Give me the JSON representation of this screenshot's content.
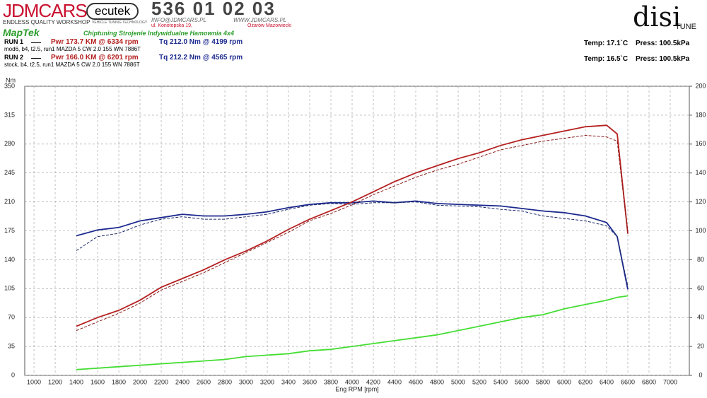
{
  "header": {
    "brand": "JDMCARS",
    "brand_tagline": "ENDLESS QUALITY WORKSHOP",
    "ecutek": "ecutek",
    "ecutek_tagline": "VEHICLE TUNING TECHNOLOGY",
    "phone": "536 01 02 03",
    "email": "INFO@JDMCARS.PL",
    "web": "WWW.JDMCARS.PL",
    "street": "ul. Konotopska 19,",
    "city": "Ożarów Mazowiecki",
    "maptek": "MapTek",
    "services": "Chiptuning Strojenie Indywidualne Hamownia 4x4",
    "disi": "disi",
    "tune": "TUNE"
  },
  "runs": [
    {
      "label": "RUN 1",
      "pwr": "Pwr  173.7 KM @ 6334 rpm",
      "tq": "Tq 212.0 Nm @ 4199 rpm",
      "desc": "mod6, b4, t2.5, run1 MAZDA 5 CW 2.0 155 WN 7886T",
      "temp": "Temp: 17.1`C",
      "press": "Press: 100.5kPa"
    },
    {
      "label": "RUN 2",
      "pwr": "Pwr  166.0 KM @ 6201 rpm",
      "tq": "Tq 212.2 Nm @ 4565 rpm",
      "desc": "stock, b4, t2.5, run1 MAZDA 5 CW 2.0 155 WN 7886T",
      "temp": "Temp: 16.5`C",
      "press": "Press: 100.5kPa"
    }
  ],
  "chart_data": {
    "type": "line",
    "y_label": "Nm",
    "x_label": "Eng RPM [rpm]",
    "x": [
      1400,
      1600,
      1800,
      2000,
      2200,
      2400,
      2600,
      2800,
      3000,
      3200,
      3400,
      3600,
      3800,
      4000,
      4200,
      4400,
      4600,
      4800,
      5000,
      5200,
      5400,
      5600,
      5800,
      6000,
      6200,
      6400,
      6500,
      6600
    ],
    "xlim": [
      913,
      7180
    ],
    "xticks": [
      1000,
      1200,
      1400,
      1600,
      1800,
      2000,
      2200,
      2400,
      2600,
      2800,
      3000,
      3200,
      3400,
      3600,
      3800,
      4000,
      4200,
      4400,
      4600,
      4800,
      5000,
      5200,
      5400,
      5600,
      5800,
      6000,
      6200,
      6400,
      6600,
      6800,
      7000
    ],
    "ylim": [
      0,
      350
    ],
    "yticks": [
      0,
      35,
      70,
      105,
      140,
      175,
      210,
      245,
      280,
      315,
      350
    ],
    "y2lim": [
      0,
      200
    ],
    "y2ticks": [
      0,
      20,
      40,
      60,
      80,
      100,
      120,
      140,
      160,
      180,
      200
    ],
    "grid": true,
    "series": [
      {
        "color": "#1c2a8e",
        "dashed": false,
        "axis": "y",
        "values": [
          169,
          176,
          179,
          187,
          191,
          195,
          193,
          193,
          195,
          198,
          203,
          207,
          209,
          209,
          211,
          209,
          211,
          208,
          207,
          206,
          205,
          202,
          199,
          197,
          193,
          185,
          168,
          104
        ]
      },
      {
        "color": "#1c2a6a",
        "dashed": true,
        "axis": "y",
        "values": [
          151,
          168,
          172,
          182,
          189,
          192,
          189,
          189,
          192,
          195,
          201,
          206,
          208,
          207,
          209,
          209,
          210,
          206,
          205,
          204,
          201,
          199,
          193,
          190,
          187,
          181,
          168,
          108
        ]
      },
      {
        "color": "#b52020",
        "dashed": false,
        "axis": "y2",
        "values": [
          34,
          40,
          45,
          52,
          61,
          67,
          73,
          80,
          86,
          93,
          101,
          108,
          114,
          120,
          127,
          134,
          140,
          145,
          150,
          154,
          159,
          163,
          166,
          169,
          172,
          173,
          167,
          98
        ]
      },
      {
        "color": "#8a1c1c",
        "dashed": true,
        "axis": "y2",
        "values": [
          31,
          37,
          43,
          50,
          59,
          65,
          71,
          78,
          85,
          92,
          99,
          107,
          112,
          118,
          125,
          131,
          137,
          142,
          146,
          151,
          156,
          159,
          162,
          164,
          166,
          165,
          162,
          98
        ]
      },
      {
        "color": "#44dd33",
        "dashed": false,
        "axis": "y2",
        "values": [
          4,
          5,
          6,
          7,
          8,
          9,
          10,
          11,
          13,
          14,
          15,
          17,
          18,
          20,
          22,
          24,
          26,
          28,
          31,
          34,
          37,
          40,
          42,
          46,
          49,
          52,
          54,
          55
        ]
      }
    ]
  }
}
